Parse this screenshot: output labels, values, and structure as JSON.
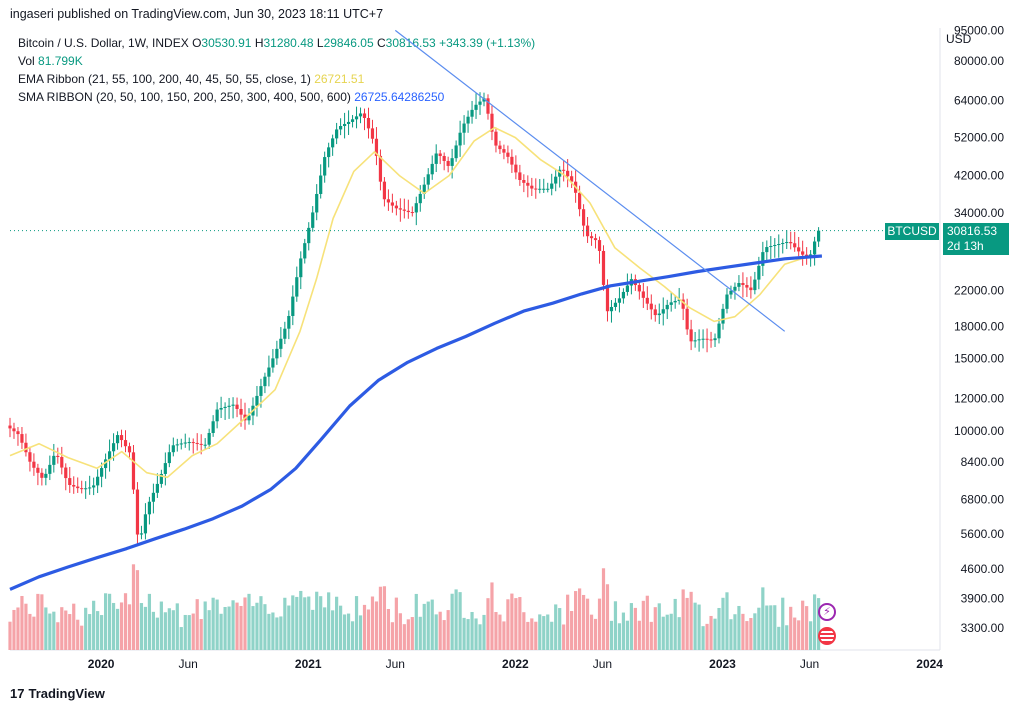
{
  "header": {
    "publisher": "ingaseri published on TradingView.com, Jun 30, 2023 18:11 UTC+7"
  },
  "legend": {
    "symbol": "Bitcoin / U.S. Dollar, 1W, INDEX",
    "open_label": "O",
    "open": "30530.91",
    "high_label": "H",
    "high": "31280.48",
    "low_label": "L",
    "low": "29846.05",
    "close_label": "C",
    "close": "30816.53",
    "change": "+343.39 (+1.13%)",
    "vol_label": "Vol",
    "vol": "81.799K",
    "ema_label": "EMA Ribbon (21, 55, 100, 200, 40, 45, 50, 55, close, 1)",
    "ema_value": "26721.51",
    "sma_label": "SMA RIBBON (20, 50, 100, 150, 200, 250, 300, 400, 500, 600)",
    "sma_value": "26725.64286250"
  },
  "currency": "USD",
  "price_tag": {
    "symbol": "BTCUSD",
    "price": "30816.53",
    "countdown": "2d 13h"
  },
  "footer": {
    "logo_text": "TradingView"
  },
  "colors": {
    "up": "#089981",
    "down": "#f23645",
    "ema": "#f7e27a",
    "sma": "#2d5be3",
    "trend": "#5b8def",
    "vol_up": "#8fd3c8",
    "vol_down": "#f5a3a8"
  },
  "chart_data": {
    "type": "candlestick",
    "scale": "log",
    "y_ticks": [
      "3300.00",
      "3900.00",
      "4600.00",
      "5600.00",
      "6800.00",
      "8400.00",
      "10000.00",
      "12000.00",
      "15000.00",
      "18000.00",
      "22000.00",
      "34000.00",
      "42000.00",
      "52000.00",
      "64000.00",
      "80000.00",
      "95000.00"
    ],
    "x_ticks": [
      {
        "label": "2020",
        "t": 2020.0,
        "bold": true
      },
      {
        "label": "Jun",
        "t": 2020.42,
        "bold": false
      },
      {
        "label": "2021",
        "t": 2021.0,
        "bold": true
      },
      {
        "label": "Jun",
        "t": 2021.42,
        "bold": false
      },
      {
        "label": "2022",
        "t": 2022.0,
        "bold": true
      },
      {
        "label": "Jun",
        "t": 2022.42,
        "bold": false
      },
      {
        "label": "2023",
        "t": 2023.0,
        "bold": true
      },
      {
        "label": "Jun",
        "t": 2023.42,
        "bold": false
      },
      {
        "label": "2024",
        "t": 2024.0,
        "bold": true
      }
    ],
    "price_series": [
      [
        2019.56,
        10300
      ],
      [
        2019.62,
        9800
      ],
      [
        2019.68,
        8300
      ],
      [
        2019.74,
        7600
      ],
      [
        2019.8,
        8900
      ],
      [
        2019.86,
        7400
      ],
      [
        2019.92,
        7200
      ],
      [
        2019.98,
        7300
      ],
      [
        2020.04,
        8500
      ],
      [
        2020.1,
        9800
      ],
      [
        2020.16,
        8800
      ],
      [
        2020.2,
        5200
      ],
      [
        2020.24,
        6500
      ],
      [
        2020.3,
        7600
      ],
      [
        2020.36,
        9200
      ],
      [
        2020.44,
        9400
      ],
      [
        2020.52,
        9200
      ],
      [
        2020.58,
        11300
      ],
      [
        2020.66,
        11600
      ],
      [
        2020.72,
        10500
      ],
      [
        2020.8,
        13200
      ],
      [
        2020.86,
        15500
      ],
      [
        2020.92,
        18500
      ],
      [
        2020.98,
        26000
      ],
      [
        2021.04,
        34000
      ],
      [
        2021.1,
        47000
      ],
      [
        2021.16,
        55000
      ],
      [
        2021.22,
        57000
      ],
      [
        2021.28,
        60000
      ],
      [
        2021.34,
        50000
      ],
      [
        2021.38,
        37000
      ],
      [
        2021.44,
        35000
      ],
      [
        2021.52,
        34000
      ],
      [
        2021.58,
        40000
      ],
      [
        2021.64,
        48000
      ],
      [
        2021.7,
        44000
      ],
      [
        2021.76,
        55000
      ],
      [
        2021.82,
        62000
      ],
      [
        2021.87,
        65000
      ],
      [
        2021.92,
        50000
      ],
      [
        2021.98,
        47000
      ],
      [
        2022.04,
        41000
      ],
      [
        2022.1,
        39000
      ],
      [
        2022.18,
        39000
      ],
      [
        2022.24,
        44000
      ],
      [
        2022.3,
        40000
      ],
      [
        2022.36,
        30000
      ],
      [
        2022.42,
        29000
      ],
      [
        2022.46,
        19500
      ],
      [
        2022.52,
        21000
      ],
      [
        2022.58,
        23500
      ],
      [
        2022.64,
        21000
      ],
      [
        2022.7,
        19000
      ],
      [
        2022.76,
        20500
      ],
      [
        2022.82,
        21000
      ],
      [
        2022.86,
        16500
      ],
      [
        2022.92,
        16800
      ],
      [
        2022.98,
        16600
      ],
      [
        2023.04,
        21500
      ],
      [
        2023.1,
        23000
      ],
      [
        2023.16,
        22000
      ],
      [
        2023.22,
        28000
      ],
      [
        2023.28,
        28500
      ],
      [
        2023.34,
        29000
      ],
      [
        2023.4,
        27000
      ],
      [
        2023.44,
        26500
      ],
      [
        2023.48,
        30816
      ]
    ],
    "ema_series": [
      [
        2019.56,
        8700
      ],
      [
        2019.7,
        9300
      ],
      [
        2019.84,
        8600
      ],
      [
        2019.98,
        8100
      ],
      [
        2020.1,
        8900
      ],
      [
        2020.22,
        7900
      ],
      [
        2020.32,
        7700
      ],
      [
        2020.44,
        8700
      ],
      [
        2020.56,
        9300
      ],
      [
        2020.7,
        10800
      ],
      [
        2020.84,
        12600
      ],
      [
        2020.96,
        17500
      ],
      [
        2021.04,
        23500
      ],
      [
        2021.12,
        33000
      ],
      [
        2021.22,
        43000
      ],
      [
        2021.32,
        48000
      ],
      [
        2021.44,
        42000
      ],
      [
        2021.56,
        38000
      ],
      [
        2021.68,
        42000
      ],
      [
        2021.8,
        51000
      ],
      [
        2021.9,
        55000
      ],
      [
        2022.0,
        52000
      ],
      [
        2022.12,
        46000
      ],
      [
        2022.24,
        42000
      ],
      [
        2022.36,
        36000
      ],
      [
        2022.48,
        28000
      ],
      [
        2022.6,
        25000
      ],
      [
        2022.72,
        22500
      ],
      [
        2022.84,
        20000
      ],
      [
        2022.96,
        18500
      ],
      [
        2023.06,
        19000
      ],
      [
        2023.18,
        21500
      ],
      [
        2023.3,
        25500
      ],
      [
        2023.4,
        26500
      ],
      [
        2023.48,
        26721
      ]
    ],
    "sma_series": [
      [
        2019.56,
        4100
      ],
      [
        2019.7,
        4400
      ],
      [
        2019.84,
        4650
      ],
      [
        2019.98,
        4900
      ],
      [
        2020.12,
        5150
      ],
      [
        2020.26,
        5450
      ],
      [
        2020.4,
        5750
      ],
      [
        2020.54,
        6100
      ],
      [
        2020.68,
        6550
      ],
      [
        2020.82,
        7200
      ],
      [
        2020.94,
        8100
      ],
      [
        2021.06,
        9500
      ],
      [
        2021.2,
        11500
      ],
      [
        2021.34,
        13300
      ],
      [
        2021.48,
        14700
      ],
      [
        2021.62,
        15900
      ],
      [
        2021.76,
        17000
      ],
      [
        2021.9,
        18300
      ],
      [
        2022.04,
        19600
      ],
      [
        2022.18,
        20500
      ],
      [
        2022.32,
        21600
      ],
      [
        2022.46,
        22600
      ],
      [
        2022.6,
        23200
      ],
      [
        2022.74,
        23800
      ],
      [
        2022.88,
        24500
      ],
      [
        2023.02,
        25100
      ],
      [
        2023.16,
        25700
      ],
      [
        2023.3,
        26300
      ],
      [
        2023.48,
        26725
      ]
    ],
    "trendline": [
      [
        2021.42,
        95000
      ],
      [
        2023.3,
        17500
      ]
    ],
    "volume_note": "volume bars shown at bottom"
  }
}
